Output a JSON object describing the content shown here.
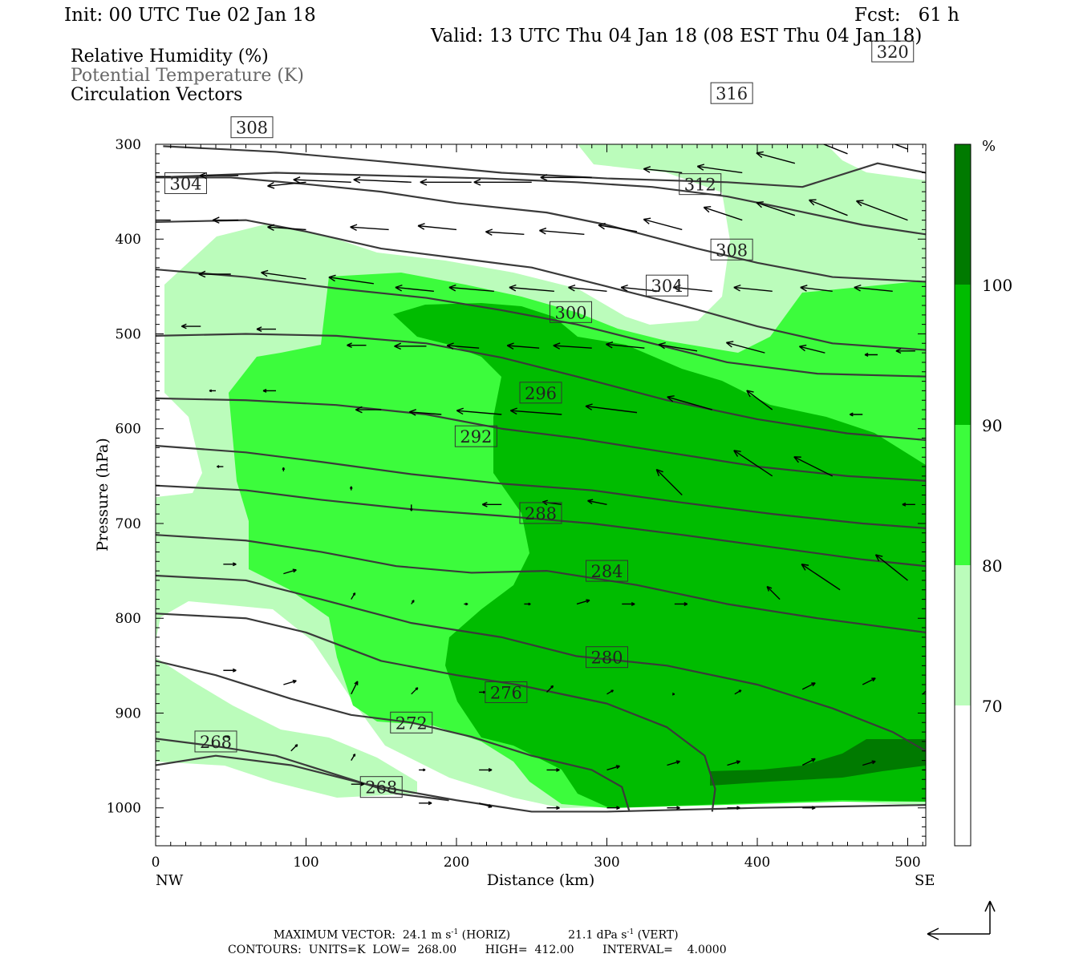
{
  "header": {
    "init": "Init: 00 UTC Tue 02 Jan 18",
    "fcst": "Fcst:   61 h",
    "valid": "Valid: 13 UTC Thu 04 Jan 18 (08 EST Thu 04 Jan 18)"
  },
  "legend": {
    "rh": "Relative Humidity (%)",
    "theta": "Potential Temperature (K)",
    "vectors": "Circulation Vectors"
  },
  "footer": {
    "max_vector_prefix": "MAXIMUM VECTOR:  24.1 m s",
    "max_vector_horiz": " (HORIZ)",
    "max_vector_vert_prefix": "21.1 dPa s",
    "max_vector_vert": " (VERT)",
    "exponent": "-1",
    "contours": "CONTOURS:  UNITS=K  LOW=  268.00        HIGH=  412.00        INTERVAL=    4.0000"
  },
  "colors": {
    "rh70": "#bbfcbb",
    "rh80": "#3cfc3c",
    "rh90": "#00bc00",
    "rh100": "#007a00",
    "contour": "#3a3a3a",
    "vector": "#000000"
  },
  "chart_data": {
    "type": "cross-section",
    "title": "",
    "xlabel": "Distance (km)",
    "ylabel": "Pressure (hPa)",
    "xlim": [
      0,
      512
    ],
    "ylim": [
      1040,
      300
    ],
    "x_ticks": [
      0,
      100,
      200,
      300,
      400,
      500
    ],
    "y_ticks": [
      300,
      400,
      500,
      600,
      700,
      800,
      900,
      1000
    ],
    "x_end_labels": {
      "left": "NW",
      "right": "SE"
    },
    "colorbar": {
      "unit": "%",
      "levels": [
        70,
        80,
        90,
        100
      ]
    },
    "theta_contours": [
      {
        "value": 268,
        "points": [
          [
            0,
            955
          ],
          [
            40,
            945
          ],
          [
            90,
            955
          ],
          [
            140,
            975
          ],
          [
            200,
            992
          ],
          [
            250,
            1004
          ],
          [
            300,
            1004
          ],
          [
            400,
            1000
          ],
          [
            512,
            997
          ]
        ]
      },
      {
        "value": 268,
        "points": [
          [
            0,
            927
          ],
          [
            40,
            935
          ],
          [
            80,
            945
          ],
          [
            120,
            965
          ],
          [
            160,
            985
          ],
          [
            195,
            992
          ]
        ]
      },
      {
        "value": 272,
        "points": [
          [
            0,
            845
          ],
          [
            40,
            860
          ],
          [
            90,
            885
          ],
          [
            130,
            902
          ],
          [
            170,
            910
          ],
          [
            210,
            925
          ],
          [
            250,
            945
          ],
          [
            290,
            960
          ],
          [
            310,
            978
          ],
          [
            315,
            1004
          ]
        ]
      },
      {
        "value": 276,
        "points": [
          [
            0,
            795
          ],
          [
            60,
            800
          ],
          [
            100,
            815
          ],
          [
            150,
            845
          ],
          [
            200,
            860
          ],
          [
            240,
            870
          ],
          [
            300,
            890
          ],
          [
            340,
            915
          ],
          [
            365,
            945
          ],
          [
            372,
            980
          ],
          [
            370,
            1004
          ]
        ]
      },
      {
        "value": 280,
        "points": [
          [
            0,
            755
          ],
          [
            60,
            760
          ],
          [
            110,
            780
          ],
          [
            170,
            805
          ],
          [
            230,
            820
          ],
          [
            280,
            840
          ],
          [
            340,
            850
          ],
          [
            400,
            870
          ],
          [
            450,
            895
          ],
          [
            490,
            920
          ],
          [
            512,
            940
          ]
        ]
      },
      {
        "value": 284,
        "points": [
          [
            0,
            712
          ],
          [
            60,
            718
          ],
          [
            110,
            730
          ],
          [
            160,
            745
          ],
          [
            210,
            752
          ],
          [
            260,
            750
          ],
          [
            320,
            765
          ],
          [
            380,
            785
          ],
          [
            440,
            800
          ],
          [
            512,
            815
          ]
        ]
      },
      {
        "value": 288,
        "points": [
          [
            0,
            660
          ],
          [
            60,
            665
          ],
          [
            110,
            675
          ],
          [
            170,
            685
          ],
          [
            230,
            692
          ],
          [
            290,
            700
          ],
          [
            350,
            712
          ],
          [
            410,
            725
          ],
          [
            470,
            738
          ],
          [
            512,
            745
          ]
        ]
      },
      {
        "value": 292,
        "points": [
          [
            0,
            618
          ],
          [
            60,
            625
          ],
          [
            110,
            635
          ],
          [
            170,
            648
          ],
          [
            230,
            658
          ],
          [
            290,
            665
          ],
          [
            350,
            678
          ],
          [
            410,
            690
          ],
          [
            470,
            700
          ],
          [
            512,
            705
          ]
        ]
      },
      {
        "value": 296,
        "points": [
          [
            0,
            568
          ],
          [
            60,
            570
          ],
          [
            120,
            575
          ],
          [
            180,
            585
          ],
          [
            230,
            600
          ],
          [
            280,
            610
          ],
          [
            340,
            625
          ],
          [
            400,
            640
          ],
          [
            460,
            650
          ],
          [
            512,
            655
          ]
        ]
      },
      {
        "value": 300,
        "points": [
          [
            0,
            502
          ],
          [
            60,
            500
          ],
          [
            120,
            502
          ],
          [
            180,
            510
          ],
          [
            230,
            525
          ],
          [
            280,
            545
          ],
          [
            340,
            570
          ],
          [
            400,
            590
          ],
          [
            460,
            605
          ],
          [
            512,
            612
          ]
        ]
      },
      {
        "value": 304,
        "points": [
          [
            0,
            432
          ],
          [
            60,
            440
          ],
          [
            120,
            452
          ],
          [
            180,
            462
          ],
          [
            230,
            475
          ],
          [
            280,
            490
          ],
          [
            330,
            510
          ],
          [
            380,
            530
          ],
          [
            440,
            542
          ],
          [
            512,
            545
          ]
        ]
      },
      {
        "value": 308,
        "points": [
          [
            0,
            382
          ],
          [
            60,
            380
          ],
          [
            100,
            392
          ],
          [
            150,
            410
          ],
          [
            200,
            420
          ],
          [
            250,
            430
          ],
          [
            300,
            450
          ],
          [
            350,
            470
          ],
          [
            400,
            492
          ],
          [
            450,
            510
          ],
          [
            512,
            517
          ]
        ]
      },
      {
        "value": 312,
        "points": [
          [
            0,
            335
          ],
          [
            50,
            335
          ],
          [
            100,
            342
          ],
          [
            150,
            350
          ],
          [
            200,
            362
          ],
          [
            260,
            372
          ],
          [
            300,
            385
          ],
          [
            360,
            410
          ],
          [
            400,
            425
          ],
          [
            450,
            440
          ],
          [
            512,
            445
          ]
        ]
      },
      {
        "value": 316,
        "points": [
          [
            0,
            335
          ],
          [
            80,
            330
          ],
          [
            150,
            333
          ],
          [
            220,
            336
          ],
          [
            280,
            340
          ],
          [
            330,
            345
          ],
          [
            380,
            355
          ],
          [
            420,
            368
          ],
          [
            470,
            385
          ],
          [
            512,
            395
          ]
        ]
      },
      {
        "value": 320,
        "points": [
          [
            5,
            302
          ],
          [
            80,
            308
          ],
          [
            150,
            318
          ],
          [
            230,
            330
          ],
          [
            300,
            336
          ],
          [
            340,
            338
          ],
          [
            380,
            340
          ],
          [
            430,
            345
          ],
          [
            480,
            320
          ],
          [
            512,
            330
          ]
        ]
      }
    ]
  }
}
